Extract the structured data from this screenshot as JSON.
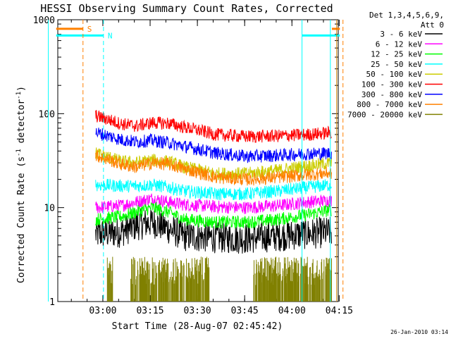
{
  "chart_data": {
    "type": "line",
    "title": "HESSI Observing Summary Count Rates, Corrected",
    "xlabel": "Start Time (28-Aug-07 02:45:42)",
    "ylabel_main": "Corrected Count Rate (s",
    "ylabel_sup1": "-1",
    "ylabel_mid": " detector",
    "ylabel_sup2": "-1",
    "ylabel_end": ")",
    "x_unit": "minutes after 02:45:42",
    "xlim": [
      0,
      89
    ],
    "ylim": [
      1,
      1000
    ],
    "yscale": "log",
    "x_ticks": [
      {
        "value": 14.3,
        "label": "03:00"
      },
      {
        "value": 29.3,
        "label": "03:15"
      },
      {
        "value": 44.3,
        "label": "03:30"
      },
      {
        "value": 59.3,
        "label": "03:45"
      },
      {
        "value": 74.3,
        "label": "04:00"
      },
      {
        "value": 89.3,
        "label": "04:15"
      }
    ],
    "y_ticks": [
      {
        "value": 1,
        "label": "1"
      },
      {
        "value": 10,
        "label": "10"
      },
      {
        "value": 100,
        "label": "100"
      },
      {
        "value": 1000,
        "label": "1000"
      }
    ],
    "legend_header": [
      "Det 1,3,4,5,6,9,",
      "Att 0"
    ],
    "legend_placement": "right",
    "series": [
      {
        "name": "3 - 6 keV",
        "color": "#000000",
        "start": 12,
        "end": 87,
        "profile": [
          [
            12,
            5.2
          ],
          [
            20,
            5.5
          ],
          [
            25,
            6.5
          ],
          [
            30,
            7.0
          ],
          [
            35,
            6.0
          ],
          [
            40,
            5.0
          ],
          [
            50,
            4.8
          ],
          [
            60,
            4.7
          ],
          [
            70,
            5.0
          ],
          [
            80,
            5.3
          ],
          [
            87,
            5.5
          ]
        ]
      },
      {
        "name": "6 - 12 keV",
        "color": "#ff00ff",
        "start": 12,
        "end": 87,
        "profile": [
          [
            12,
            10.0
          ],
          [
            20,
            10.5
          ],
          [
            25,
            11.5
          ],
          [
            30,
            12.5
          ],
          [
            35,
            11.5
          ],
          [
            40,
            10.8
          ],
          [
            50,
            10.2
          ],
          [
            60,
            10.0
          ],
          [
            70,
            10.5
          ],
          [
            80,
            11.5
          ],
          [
            87,
            12.0
          ]
        ]
      },
      {
        "name": "12 - 25 keV",
        "color": "#00ff00",
        "start": 12,
        "end": 87,
        "profile": [
          [
            12,
            7.5
          ],
          [
            20,
            8.0
          ],
          [
            25,
            9.0
          ],
          [
            30,
            10.0
          ],
          [
            35,
            9.0
          ],
          [
            40,
            7.5
          ],
          [
            50,
            7.0
          ],
          [
            60,
            7.0
          ],
          [
            70,
            7.5
          ],
          [
            80,
            8.5
          ],
          [
            87,
            9.5
          ]
        ]
      },
      {
        "name": "25 - 50 keV",
        "color": "#00ffff",
        "start": 12,
        "end": 87,
        "profile": [
          [
            12,
            17.5
          ],
          [
            20,
            17.0
          ],
          [
            25,
            17.0
          ],
          [
            30,
            17.5
          ],
          [
            35,
            16.5
          ],
          [
            40,
            15.0
          ],
          [
            50,
            14.0
          ],
          [
            60,
            14.0
          ],
          [
            70,
            15.0
          ],
          [
            80,
            16.5
          ],
          [
            87,
            17.5
          ]
        ]
      },
      {
        "name": "50 - 100 keV",
        "color": "#cccc00",
        "start": 12,
        "end": 87,
        "profile": [
          [
            12,
            38.0
          ],
          [
            20,
            31.0
          ],
          [
            25,
            30.0
          ],
          [
            30,
            32.0
          ],
          [
            35,
            31.0
          ],
          [
            40,
            27.0
          ],
          [
            50,
            23.0
          ],
          [
            60,
            23.0
          ],
          [
            70,
            25.0
          ],
          [
            80,
            28.0
          ],
          [
            87,
            30.0
          ]
        ]
      },
      {
        "name": "100 - 300 keV",
        "color": "#ff0000",
        "start": 12,
        "end": 87,
        "profile": [
          [
            12,
            95.0
          ],
          [
            20,
            78.0
          ],
          [
            25,
            74.0
          ],
          [
            30,
            80.0
          ],
          [
            35,
            79.0
          ],
          [
            40,
            72.0
          ],
          [
            50,
            60.0
          ],
          [
            60,
            57.0
          ],
          [
            70,
            58.0
          ],
          [
            80,
            60.0
          ],
          [
            87,
            63.0
          ]
        ]
      },
      {
        "name": "300 - 800 keV",
        "color": "#0000ff",
        "start": 12,
        "end": 87,
        "profile": [
          [
            12,
            63.0
          ],
          [
            20,
            53.0
          ],
          [
            25,
            50.0
          ],
          [
            30,
            52.0
          ],
          [
            35,
            49.0
          ],
          [
            40,
            45.0
          ],
          [
            50,
            38.0
          ],
          [
            60,
            35.0
          ],
          [
            70,
            36.0
          ],
          [
            80,
            37.5
          ],
          [
            87,
            38.0
          ]
        ]
      },
      {
        "name": "800 - 7000 keV",
        "color": "#ff8000",
        "start": 12,
        "end": 87,
        "profile": [
          [
            12,
            36.0
          ],
          [
            20,
            29.0
          ],
          [
            25,
            27.0
          ],
          [
            30,
            30.0
          ],
          [
            35,
            29.0
          ],
          [
            40,
            26.0
          ],
          [
            50,
            21.0
          ],
          [
            60,
            20.0
          ],
          [
            70,
            21.0
          ],
          [
            80,
            22.5
          ],
          [
            87,
            23.5
          ]
        ]
      },
      {
        "name": "7000 - 20000 keV",
        "color": "#808000",
        "start": 12,
        "end": 87,
        "profile": [
          [
            12,
            1.0
          ],
          [
            87,
            1.0
          ]
        ]
      }
    ],
    "annotations": [
      {
        "label": "S",
        "color": "#ff8000",
        "kind": "bar",
        "x1": -3,
        "x2": 8,
        "y": 800
      },
      {
        "label": "",
        "color": "#ff8000",
        "kind": "bar",
        "x1": 87,
        "x2": 90,
        "y": 800
      },
      {
        "label": "N",
        "color": "#00ffff",
        "kind": "bar",
        "x1": -3,
        "x2": 14.5,
        "y": 680
      },
      {
        "label": "",
        "color": "#00ffff",
        "kind": "bar",
        "x1": 77.5,
        "x2": 90,
        "y": 680
      },
      {
        "label": "",
        "color": "#ff8000",
        "kind": "vdash",
        "x": 8
      },
      {
        "label": "",
        "color": "#00ffff",
        "kind": "vdash",
        "x": 14.5
      },
      {
        "label": "",
        "color": "#00ffff",
        "kind": "vsolid",
        "x": 77.5
      },
      {
        "label": "",
        "color": "#00ffff",
        "kind": "vsolid",
        "x": 86.5
      },
      {
        "label": "",
        "color": "#cc8000",
        "kind": "vsolid",
        "x": 88.5
      },
      {
        "label": "",
        "color": "#ff8000",
        "kind": "vdash",
        "x": 90.5
      },
      {
        "label": "",
        "color": "#00ffff",
        "kind": "vsolid",
        "x": -3
      }
    ],
    "footer_timestamp": "26-Jan-2010 03:14"
  }
}
